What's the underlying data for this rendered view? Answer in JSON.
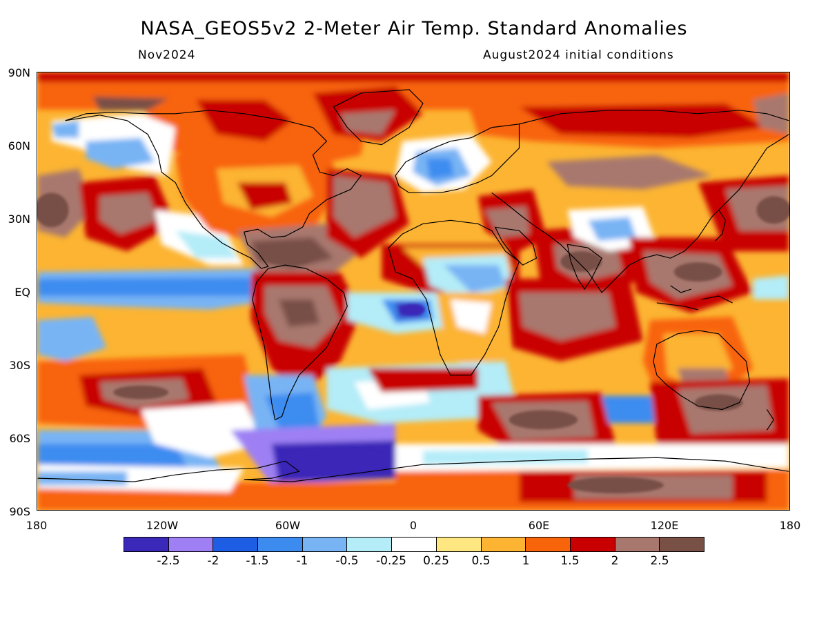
{
  "header": {
    "title": "NASA_GEOS5v2 2-Meter Air Temp. Standard Anomalies",
    "valid_month": "Nov2024",
    "init_conditions": "August2024 initial conditions"
  },
  "axes": {
    "lat_labels": [
      "90N",
      "60N",
      "30N",
      "EQ",
      "30S",
      "60S",
      "90S"
    ],
    "lon_labels": [
      "180",
      "120W",
      "60W",
      "0",
      "60E",
      "120E",
      "180"
    ]
  },
  "colorbar": {
    "labels": [
      "-2.5",
      "-2",
      "-1.5",
      "-1",
      "-0.5",
      "-0.25",
      "0.25",
      "0.5",
      "1",
      "1.5",
      "2",
      "2.5"
    ],
    "colors": [
      "#3a28b8",
      "#9e80f4",
      "#1e5ee4",
      "#3c8cf0",
      "#78b4f4",
      "#b4ecf8",
      "#ffffff",
      "#fee680",
      "#fcb432",
      "#f8640a",
      "#c80000",
      "#a8786e",
      "#785046"
    ]
  },
  "map": {
    "projection": "cylindrical equidistant",
    "ocean_background": "#fcb432",
    "land_outline_color": "#000000"
  }
}
